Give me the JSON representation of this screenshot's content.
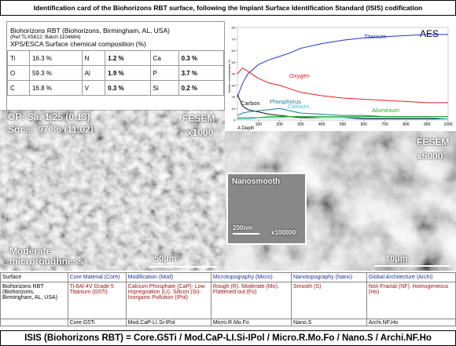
{
  "header": {
    "title": "Identification card of the Biohorizons RBT surface, following the Implant Surface Identification Standard (ISIS) codification"
  },
  "composition": {
    "name": "Biohorizons RBT (Biohorizons, Birmingham, AL, USA)",
    "ref": "(Ref:TLX5812; Batch:1104684)",
    "subtitle": "XPS/ESCA Surface chemical composition (%)",
    "rows": [
      [
        "Ti",
        "16.3 %",
        "N",
        "1.2 %",
        "Ca",
        "0.3 %"
      ],
      [
        "O",
        "59.3 %",
        "Al",
        "1.9 %",
        "P",
        "3.7 %"
      ],
      [
        "C",
        "16.8 %",
        "V",
        "0.3 %",
        "Si",
        "0.2 %"
      ]
    ]
  },
  "chart_data": {
    "type": "line",
    "title": "AES",
    "xlabel": "A Depth",
    "ylabel": "Atomic concentration %",
    "x": [
      0,
      25,
      50,
      100,
      150,
      200,
      250,
      300,
      400,
      500,
      600,
      700,
      800,
      900,
      1000
    ],
    "series": [
      {
        "name": "Titanium",
        "color": "#2233cc",
        "values": [
          20,
          32,
          40,
          48,
          52,
          55,
          58,
          62,
          66,
          69,
          71,
          72,
          73,
          74,
          74
        ]
      },
      {
        "name": "Oxygen",
        "color": "#e02020",
        "values": [
          40,
          45,
          42,
          36,
          32,
          30,
          27,
          24,
          21,
          19,
          18,
          17,
          16,
          15,
          15
        ]
      },
      {
        "name": "Carbon",
        "color": "#111111",
        "values": [
          22,
          12,
          9,
          7,
          5,
          4,
          3,
          2,
          2,
          2,
          1,
          1,
          1,
          1,
          1
        ]
      },
      {
        "name": "Phosphorus",
        "color": "#1a7a9a",
        "values": [
          4,
          6,
          7,
          8,
          9,
          10,
          8,
          6,
          5,
          4,
          4,
          3,
          3,
          3,
          3
        ]
      },
      {
        "name": "Calcium",
        "color": "#22c8d8",
        "values": [
          1,
          1,
          1,
          2,
          2,
          2,
          3,
          3,
          2,
          2,
          2,
          2,
          2,
          2,
          1
        ]
      },
      {
        "name": "Aluminium",
        "color": "#22aa22",
        "values": [
          2,
          2,
          2,
          2,
          3,
          3,
          3,
          3,
          3,
          3,
          3,
          3,
          3,
          3,
          3
        ]
      }
    ],
    "xlim": [
      0,
      1000
    ],
    "xticks": [
      100,
      200,
      300,
      400,
      500,
      600,
      700,
      800,
      900,
      1000
    ],
    "ylim": [
      0,
      80
    ],
    "yticks": [
      0,
      10,
      20,
      30,
      40,
      50,
      60,
      70,
      80
    ]
  },
  "fesem_left": {
    "sa": "OP: Sa: 1.25 (0.13)",
    "sdr": "Sdr%: 97.86 (11.02)",
    "label": "FESEM",
    "mag": "x1000",
    "caption": "Moderate microroughness",
    "scale": "50µm"
  },
  "fesem_right": {
    "label": "FESEM",
    "mag": "x5000",
    "scale": "10µm"
  },
  "inset": {
    "label": "Nanosmooth",
    "scale": "200nm",
    "mag": "x100000"
  },
  "table": {
    "header": [
      "Surface",
      "Core Material (Core)",
      "Modification (Mod)",
      "Microtopography (Micro)",
      "Nanotopography (Nano)",
      "Global Architecture (Archi)"
    ],
    "rows": [
      [
        "Biohorizons RBT (Biohorizons, Birmingham, AL, USA)",
        "Ti-6Al-4V Grade 5 Titanium (G5Ti)",
        "Calcium Phosphate (CaP)- Low Impregnation (LI). Silicon (Si)-Inorganic Pollution (IPol)",
        "Rough (R). Moderate (Mo). Flattened out (Fo)",
        "Smooth (S)",
        "Non Fractal (NF). Homogeneous (Ho)"
      ],
      [
        null,
        "Core.G5Ti",
        "Mod.CaP-LI.Si-IPol",
        "Micro.R.Mo.Fo",
        "Nano.S",
        "Archi.NF.Ho"
      ]
    ]
  },
  "footer": "ISIS (Biohorizons RBT) = Core.G5Ti / Mod.CaP-LI.Si-IPol / Micro.R.Mo.Fo / Nano.S / Archi.NF.Ho"
}
